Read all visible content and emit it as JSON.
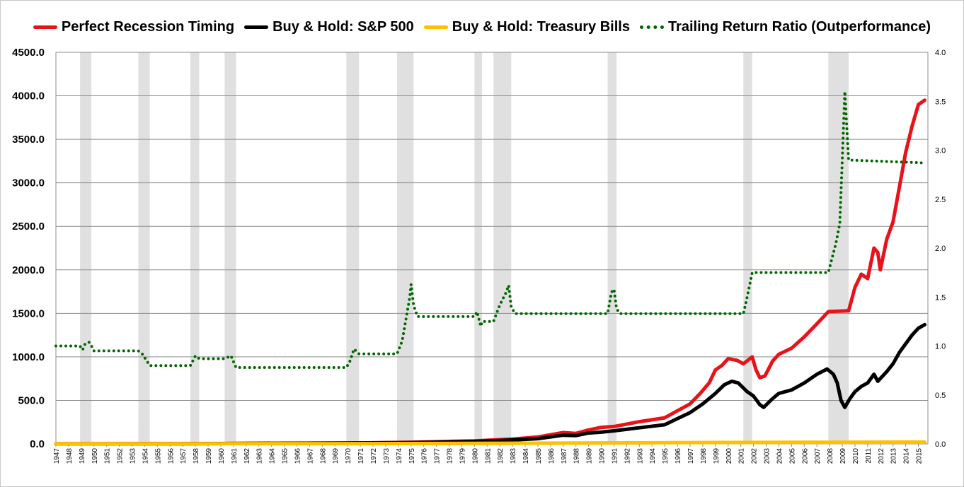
{
  "chart_data": {
    "type": "line",
    "title": "",
    "xlabel": "",
    "ylabel": "",
    "xlim": [
      1947,
      2015.75
    ],
    "ylim": [
      0,
      4500
    ],
    "y_ticks": [
      0,
      500,
      1000,
      1500,
      2000,
      2500,
      3000,
      3500,
      4000,
      4500
    ],
    "y_tick_labels": [
      "0.0",
      "500.0",
      "1000.0",
      "1500.0",
      "2000.0",
      "2500.0",
      "3000.0",
      "3500.0",
      "4000.0",
      "4500.0"
    ],
    "y2lim": [
      0,
      4.0
    ],
    "y2_ticks": [
      0,
      0.5,
      1.0,
      1.5,
      2.0,
      2.5,
      3.0,
      3.5,
      4.0
    ],
    "y2_tick_labels": [
      "0.0",
      "0.5",
      "1.0",
      "1.5",
      "2.0",
      "2.5",
      "3.0",
      "3.5",
      "4.0"
    ],
    "x_tick_labels": [
      "1947",
      "1948",
      "1949",
      "1950",
      "1951",
      "1952",
      "1953",
      "1954",
      "1955",
      "1956",
      "1957",
      "1958",
      "1959",
      "1960",
      "1961",
      "1962",
      "1963",
      "1964",
      "1965",
      "1966",
      "1967",
      "1968",
      "1969",
      "1970",
      "1971",
      "1972",
      "1973",
      "1974",
      "1975",
      "1976",
      "1977",
      "1978",
      "1979",
      "1980",
      "1981",
      "1982",
      "1983",
      "1984",
      "1985",
      "1986",
      "1987",
      "1988",
      "1989",
      "1990",
      "1991",
      "1992",
      "1993",
      "1994",
      "1995",
      "1996",
      "1997",
      "1998",
      "1999",
      "2000",
      "2001",
      "2002",
      "2003",
      "2004",
      "2005",
      "2006",
      "2007",
      "2008",
      "2009",
      "2010",
      "2011",
      "2012",
      "2013",
      "2014",
      "2015"
    ],
    "grid": true,
    "legend_position": "top",
    "recessions": [
      [
        1948.9,
        1949.8
      ],
      [
        1953.5,
        1954.4
      ],
      [
        1957.6,
        1958.3
      ],
      [
        1960.3,
        1961.2
      ],
      [
        1969.9,
        1970.9
      ],
      [
        1973.9,
        1975.2
      ],
      [
        1980.0,
        1980.6
      ],
      [
        1981.5,
        1982.9
      ],
      [
        1990.5,
        1991.2
      ],
      [
        2001.2,
        2001.9
      ],
      [
        2007.9,
        2009.5
      ]
    ],
    "series": [
      {
        "name": "Perfect Recession Timing",
        "axis": "left",
        "color": "#e8131a",
        "points": [
          [
            1947,
            1
          ],
          [
            1955,
            2
          ],
          [
            1960,
            4
          ],
          [
            1965,
            7
          ],
          [
            1970,
            10
          ],
          [
            1975,
            18
          ],
          [
            1980,
            35
          ],
          [
            1983,
            55
          ],
          [
            1985,
            80
          ],
          [
            1987,
            130
          ],
          [
            1988,
            120
          ],
          [
            1989,
            160
          ],
          [
            1990,
            190
          ],
          [
            1991,
            200
          ],
          [
            1993,
            255
          ],
          [
            1995,
            300
          ],
          [
            1996,
            380
          ],
          [
            1997,
            460
          ],
          [
            1997.8,
            580
          ],
          [
            1998.5,
            700
          ],
          [
            1999,
            850
          ],
          [
            1999.5,
            900
          ],
          [
            2000,
            980
          ],
          [
            2000.7,
            960
          ],
          [
            2001.2,
            920
          ],
          [
            2001.9,
            1000
          ],
          [
            2002.2,
            850
          ],
          [
            2002.5,
            760
          ],
          [
            2002.9,
            780
          ],
          [
            2003.5,
            950
          ],
          [
            2004,
            1030
          ],
          [
            2005,
            1100
          ],
          [
            2006,
            1230
          ],
          [
            2007,
            1380
          ],
          [
            2007.9,
            1520
          ],
          [
            2009.5,
            1530
          ],
          [
            2010,
            1800
          ],
          [
            2010.5,
            1950
          ],
          [
            2011,
            1900
          ],
          [
            2011.5,
            2250
          ],
          [
            2011.8,
            2200
          ],
          [
            2012,
            2000
          ],
          [
            2012.5,
            2350
          ],
          [
            2013,
            2550
          ],
          [
            2013.5,
            2950
          ],
          [
            2014,
            3350
          ],
          [
            2014.5,
            3650
          ],
          [
            2015,
            3900
          ],
          [
            2015.5,
            3950
          ]
        ]
      },
      {
        "name": "Buy & Hold: S&P 500",
        "axis": "left",
        "color": "#000000",
        "points": [
          [
            1947,
            1
          ],
          [
            1955,
            2
          ],
          [
            1960,
            4
          ],
          [
            1965,
            7
          ],
          [
            1970,
            10
          ],
          [
            1975,
            15
          ],
          [
            1980,
            28
          ],
          [
            1983,
            45
          ],
          [
            1985,
            60
          ],
          [
            1987,
            100
          ],
          [
            1988,
            95
          ],
          [
            1989,
            125
          ],
          [
            1990,
            135
          ],
          [
            1991,
            150
          ],
          [
            1993,
            185
          ],
          [
            1995,
            220
          ],
          [
            1996,
            290
          ],
          [
            1997,
            360
          ],
          [
            1998,
            460
          ],
          [
            1999,
            580
          ],
          [
            1999.7,
            680
          ],
          [
            2000.3,
            720
          ],
          [
            2000.8,
            700
          ],
          [
            2001.5,
            600
          ],
          [
            2002,
            550
          ],
          [
            2002.5,
            450
          ],
          [
            2002.8,
            420
          ],
          [
            2003.5,
            520
          ],
          [
            2004,
            580
          ],
          [
            2005,
            620
          ],
          [
            2006,
            700
          ],
          [
            2007,
            800
          ],
          [
            2007.8,
            860
          ],
          [
            2008.3,
            800
          ],
          [
            2008.6,
            700
          ],
          [
            2008.9,
            500
          ],
          [
            2009.2,
            420
          ],
          [
            2009.6,
            520
          ],
          [
            2010,
            600
          ],
          [
            2010.5,
            660
          ],
          [
            2011,
            700
          ],
          [
            2011.5,
            800
          ],
          [
            2011.8,
            720
          ],
          [
            2012.5,
            830
          ],
          [
            2013,
            920
          ],
          [
            2013.5,
            1050
          ],
          [
            2014,
            1150
          ],
          [
            2014.5,
            1250
          ],
          [
            2015,
            1330
          ],
          [
            2015.5,
            1370
          ]
        ]
      },
      {
        "name": "Buy & Hold: Treasury Bills",
        "axis": "left",
        "color": "#ffc000",
        "points": [
          [
            1947,
            1
          ],
          [
            1970,
            3
          ],
          [
            1980,
            6
          ],
          [
            1990,
            11
          ],
          [
            2000,
            16
          ],
          [
            2008,
            19
          ],
          [
            2015.5,
            20
          ]
        ]
      },
      {
        "name": "Trailing Return Ratio (Outperformance)",
        "axis": "right",
        "color": "#006600",
        "points": [
          [
            1947,
            1.0
          ],
          [
            1948.9,
            1.0
          ],
          [
            1949.1,
            0.96
          ],
          [
            1949.3,
            1.02
          ],
          [
            1949.6,
            1.04
          ],
          [
            1949.8,
            1.0
          ],
          [
            1950,
            0.95
          ],
          [
            1953.5,
            0.95
          ],
          [
            1953.8,
            0.92
          ],
          [
            1954.4,
            0.8
          ],
          [
            1957.6,
            0.8
          ],
          [
            1958,
            0.9
          ],
          [
            1958.3,
            0.87
          ],
          [
            1960.3,
            0.87
          ],
          [
            1960.8,
            0.9
          ],
          [
            1961.2,
            0.78
          ],
          [
            1969.9,
            0.78
          ],
          [
            1970.2,
            0.85
          ],
          [
            1970.5,
            0.97
          ],
          [
            1970.9,
            0.92
          ],
          [
            1973.9,
            0.92
          ],
          [
            1974.3,
            1.05
          ],
          [
            1974.7,
            1.35
          ],
          [
            1974.9,
            1.5
          ],
          [
            1975.0,
            1.63
          ],
          [
            1975.2,
            1.42
          ],
          [
            1975.5,
            1.3
          ],
          [
            1980.0,
            1.3
          ],
          [
            1980.2,
            1.35
          ],
          [
            1980.5,
            1.2
          ],
          [
            1980.6,
            1.25
          ],
          [
            1981.5,
            1.25
          ],
          [
            1982.0,
            1.42
          ],
          [
            1982.5,
            1.55
          ],
          [
            1982.7,
            1.62
          ],
          [
            1982.9,
            1.4
          ],
          [
            1983.2,
            1.33
          ],
          [
            1990.5,
            1.33
          ],
          [
            1990.8,
            1.55
          ],
          [
            1991.0,
            1.58
          ],
          [
            1991.2,
            1.38
          ],
          [
            1991.5,
            1.33
          ],
          [
            2001.2,
            1.33
          ],
          [
            2001.5,
            1.5
          ],
          [
            2001.9,
            1.75
          ],
          [
            2007.9,
            1.75
          ],
          [
            2008.2,
            1.9
          ],
          [
            2008.5,
            2.05
          ],
          [
            2008.8,
            2.25
          ],
          [
            2009.0,
            2.9
          ],
          [
            2009.2,
            3.6
          ],
          [
            2009.5,
            2.9
          ],
          [
            2015.5,
            2.87
          ]
        ]
      }
    ]
  }
}
